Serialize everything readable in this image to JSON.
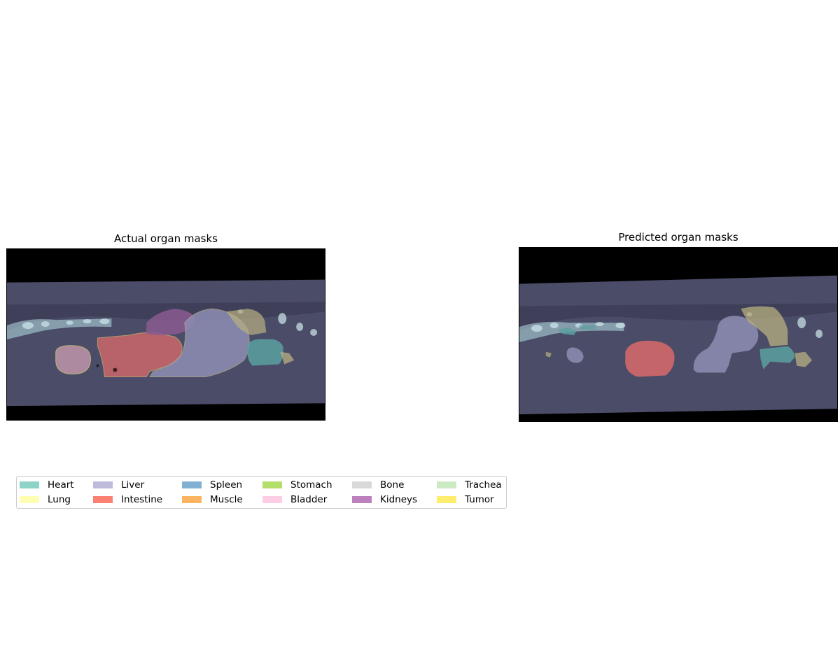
{
  "panels": {
    "actual": {
      "title": "Actual organ masks"
    },
    "predicted": {
      "title": "Predicted organ masks"
    }
  },
  "legend": {
    "items": [
      {
        "label": "Heart",
        "color": "#8dd3c7"
      },
      {
        "label": "Lung",
        "color": "#ffffb3"
      },
      {
        "label": "Liver",
        "color": "#bebada"
      },
      {
        "label": "Intestine",
        "color": "#fb8072"
      },
      {
        "label": "Spleen",
        "color": "#80b1d3"
      },
      {
        "label": "Muscle",
        "color": "#fdb462"
      },
      {
        "label": "Stomach",
        "color": "#b3de69"
      },
      {
        "label": "Bladder",
        "color": "#fccde5"
      },
      {
        "label": "Bone",
        "color": "#d9d9d9"
      },
      {
        "label": "Kidneys",
        "color": "#bc80bd"
      },
      {
        "label": "Trachea",
        "color": "#ccebc5"
      },
      {
        "label": "Tumor",
        "color": "#ffed6f"
      }
    ]
  }
}
